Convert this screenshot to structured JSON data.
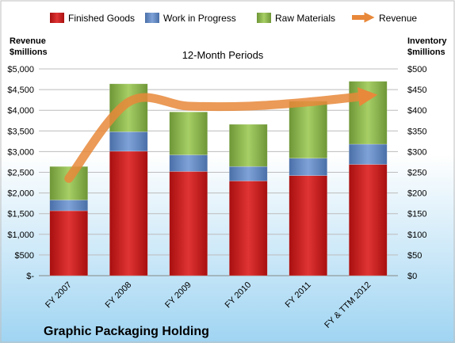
{
  "chart_data": {
    "type": "bar",
    "stacked": true,
    "subtitle": "12-Month Periods",
    "company": "Graphic Packaging Holding",
    "categories": [
      "FY 2007",
      "FY 2008",
      "FY 2009",
      "FY 2010",
      "FY 2011",
      "FY & TTM 2012"
    ],
    "series": [
      {
        "name": "Finished Goods",
        "axis": "right",
        "color": "#cc1f1f",
        "values": [
          157,
          301,
          252,
          229,
          242,
          269
        ]
      },
      {
        "name": "Work in Progress",
        "axis": "right",
        "color": "#5b84c4",
        "values": [
          26,
          47,
          40,
          35,
          42,
          49
        ]
      },
      {
        "name": "Raw Materials",
        "axis": "right",
        "color": "#8cb84a",
        "values": [
          81,
          116,
          104,
          102,
          138,
          152
        ]
      }
    ],
    "line_series": {
      "name": "Revenue",
      "axis": "left",
      "color": "#e8883a",
      "values": [
        2350,
        4200,
        4100,
        4100,
        4200,
        4350
      ]
    },
    "left_axis": {
      "label_line1": "Revenue",
      "label_line2": "$millions",
      "ylim": [
        0,
        5000
      ],
      "ticks": [
        0,
        500,
        1000,
        1500,
        2000,
        2500,
        3000,
        3500,
        4000,
        4500,
        5000
      ],
      "tick_labels": [
        "$-",
        "$500",
        "$1,000",
        "$1,500",
        "$2,000",
        "$2,500",
        "$3,000",
        "$3,500",
        "$4,000",
        "$4,500",
        "$5,000"
      ]
    },
    "right_axis": {
      "label_line1": "Inventory",
      "label_line2": "$millions",
      "ylim": [
        0,
        500
      ],
      "ticks": [
        0,
        50,
        100,
        150,
        200,
        250,
        300,
        350,
        400,
        450,
        500
      ],
      "tick_labels": [
        "$0",
        "$50",
        "$100",
        "$150",
        "$200",
        "$250",
        "$300",
        "$350",
        "$400",
        "$450",
        "$500"
      ]
    },
    "legend": {
      "position": "top",
      "items": [
        "Finished Goods",
        "Work in Progress",
        "Raw Materials",
        "Revenue"
      ]
    },
    "grid": true
  }
}
